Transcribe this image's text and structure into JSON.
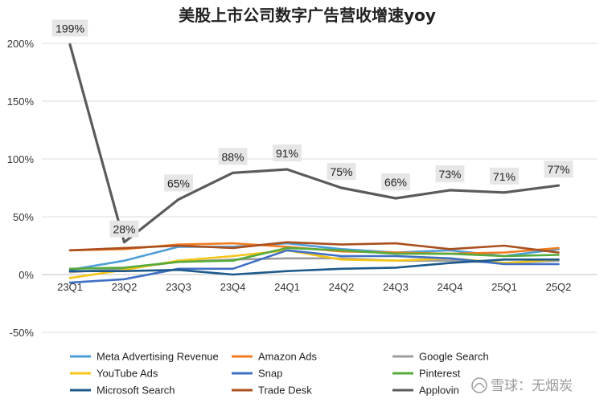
{
  "chart_data": {
    "type": "line",
    "title": "美股上市公司数字广告营收增速yoy",
    "xlabel": "",
    "ylabel": "",
    "categories": [
      "23Q1",
      "23Q2",
      "23Q3",
      "23Q4",
      "24Q1",
      "24Q2",
      "24Q3",
      "24Q4",
      "25Q1",
      "25Q2"
    ],
    "ylim": [
      -50,
      200
    ],
    "yticks": [
      -50,
      0,
      50,
      100,
      150,
      200
    ],
    "ytick_labels": [
      "-50%",
      "0%",
      "50%",
      "100%",
      "150%",
      "200%"
    ],
    "grid": true,
    "legend_position": "bottom",
    "series": [
      {
        "name": "Meta Advertising Revenue",
        "color": "#4e9fd8",
        "values": [
          4,
          12,
          24,
          24,
          27,
          22,
          19,
          21,
          16,
          22
        ]
      },
      {
        "name": "Amazon Ads",
        "color": "#f07d22",
        "values": [
          21,
          22,
          26,
          27,
          24,
          20,
          19,
          18,
          19,
          23
        ]
      },
      {
        "name": "Google Search",
        "color": "#9e9e9e",
        "values": [
          2,
          5,
          11,
          13,
          14,
          14,
          12,
          12,
          10,
          12
        ]
      },
      {
        "name": "YouTube Ads",
        "color": "#f5c518",
        "values": [
          -3,
          4,
          12,
          16,
          21,
          13,
          12,
          14,
          10,
          13
        ]
      },
      {
        "name": "Snap",
        "color": "#3f6fc4",
        "values": [
          -7,
          -4,
          5,
          5,
          21,
          16,
          16,
          14,
          9,
          9
        ]
      },
      {
        "name": "Pinterest",
        "color": "#57aa3c",
        "values": [
          5,
          6,
          11,
          12,
          23,
          21,
          18,
          18,
          16,
          17
        ]
      },
      {
        "name": "Microsoft Search",
        "color": "#1d5a8a",
        "values": [
          3,
          3,
          4,
          0,
          3,
          5,
          6,
          10,
          13,
          13
        ]
      },
      {
        "name": "Trade Desk",
        "color": "#a9501e",
        "values": [
          21,
          23,
          25,
          23,
          28,
          26,
          27,
          22,
          25,
          19
        ]
      },
      {
        "name": "Applovin",
        "color": "#5b5b5b",
        "values": [
          199,
          28,
          65,
          88,
          91,
          75,
          66,
          73,
          71,
          77
        ]
      }
    ],
    "data_labels": {
      "series": "Applovin",
      "labels": [
        "199%",
        "28%",
        "65%",
        "88%",
        "91%",
        "75%",
        "66%",
        "73%",
        "71%",
        "77%"
      ]
    }
  },
  "watermark": {
    "icon": "snowball-icon",
    "text": "雪球：无烟炭"
  }
}
